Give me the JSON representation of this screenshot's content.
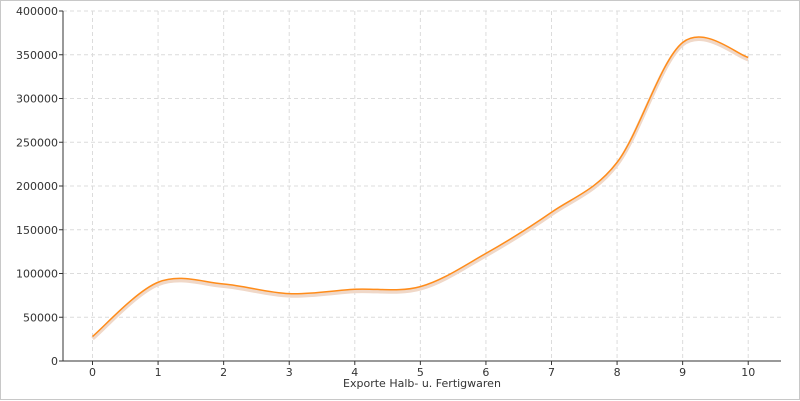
{
  "chart_data": {
    "type": "line",
    "title": "",
    "xlabel": "Exporte Halb- u. Fertigwaren",
    "ylabel": "",
    "x": [
      0,
      1,
      2,
      3,
      4,
      5,
      6,
      7,
      8,
      9,
      10
    ],
    "series": [
      {
        "color": "#ff8c1a",
        "values": [
          28000,
          90000,
          88000,
          77000,
          82000,
          85000,
          123000,
          170000,
          227000,
          364000,
          347000
        ]
      }
    ],
    "xlim": [
      -0.45,
      10.5
    ],
    "ylim": [
      0,
      400000
    ],
    "x_ticks": [
      "0",
      "1",
      "2",
      "3",
      "4",
      "5",
      "6",
      "7",
      "8",
      "9",
      "10"
    ],
    "y_ticks": [
      "0",
      "50000",
      "100000",
      "150000",
      "200000",
      "250000",
      "300000",
      "350000",
      "400000"
    ],
    "grid": true,
    "curve": "smooth",
    "legend": "none"
  }
}
